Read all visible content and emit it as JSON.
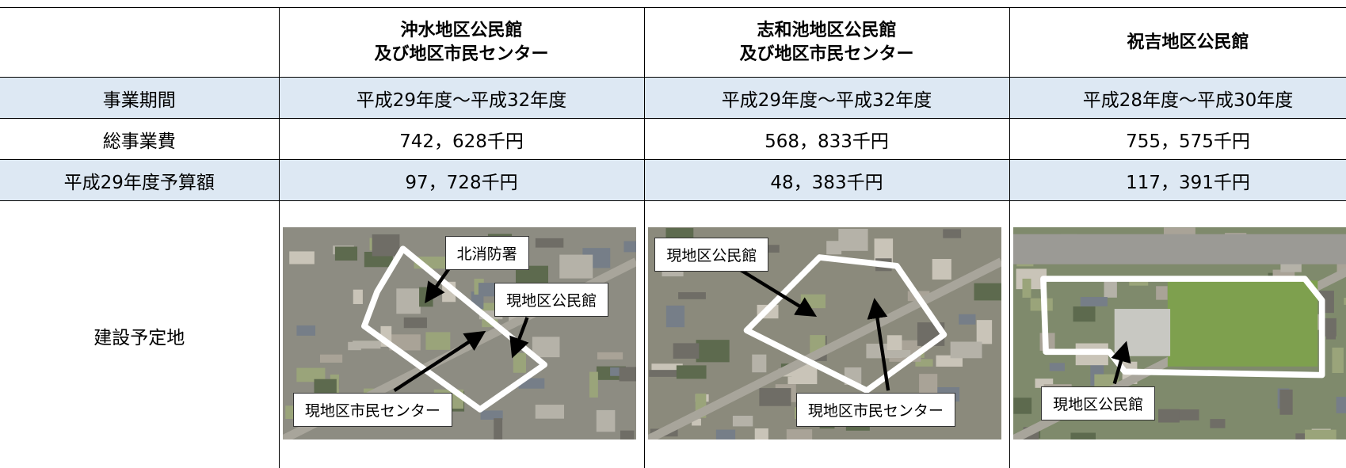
{
  "table": {
    "header": [
      [
        "沖水地区公民館",
        "及び地区市民センター"
      ],
      [
        "志和池地区公民館",
        "及び地区市民センター"
      ],
      [
        "祝吉地区公民館"
      ]
    ],
    "rows": [
      {
        "label": "事業期間",
        "cells": [
          "平成29年度～平成32年度",
          "平成29年度～平成32年度",
          "平成28年度～平成30年度"
        ]
      },
      {
        "label": "総事業費",
        "cells": [
          "742，628千円",
          "568，833千円",
          "755，575千円"
        ]
      },
      {
        "label": "平成29年度予算額",
        "cells": [
          "97，728千円",
          "48，383千円",
          "117，391千円"
        ]
      }
    ],
    "site": {
      "label": "建設予定地",
      "maps": [
        {
          "labels": [
            "北消防署",
            "現地区公民館",
            "現地区市民センター"
          ]
        },
        {
          "labels": [
            "現地区公民館",
            "現地区市民センター"
          ]
        },
        {
          "labels": [
            "現地区公民館"
          ]
        }
      ]
    }
  }
}
